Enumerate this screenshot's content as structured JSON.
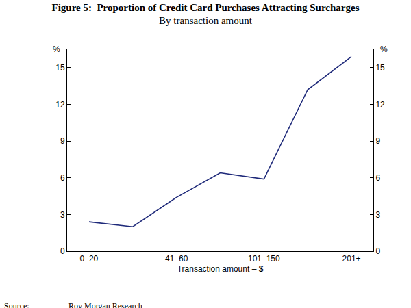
{
  "chart_data": {
    "type": "line",
    "title": "Figure 5:  Proportion of Credit Card Purchases Attracting Surcharges",
    "subtitle": "By transaction amount",
    "x_label": "Transaction amount – $",
    "y_label": "%",
    "y2_label": "%",
    "source_label": "Source:",
    "source": "Roy Morgan Research",
    "categories": [
      "0–20",
      null,
      "41–60",
      null,
      "101–150",
      null,
      "201+"
    ],
    "values": [
      2.4,
      2.0,
      4.4,
      6.4,
      5.9,
      13.2,
      15.9
    ],
    "color": "#1f2a7a",
    "ylim": [
      0,
      16.5
    ],
    "yticks": [
      0,
      3,
      6,
      9,
      12,
      15
    ],
    "y2lim": [
      0,
      16.5
    ],
    "y2ticks": [
      0,
      3,
      6,
      9,
      12,
      15
    ],
    "grid": false
  }
}
